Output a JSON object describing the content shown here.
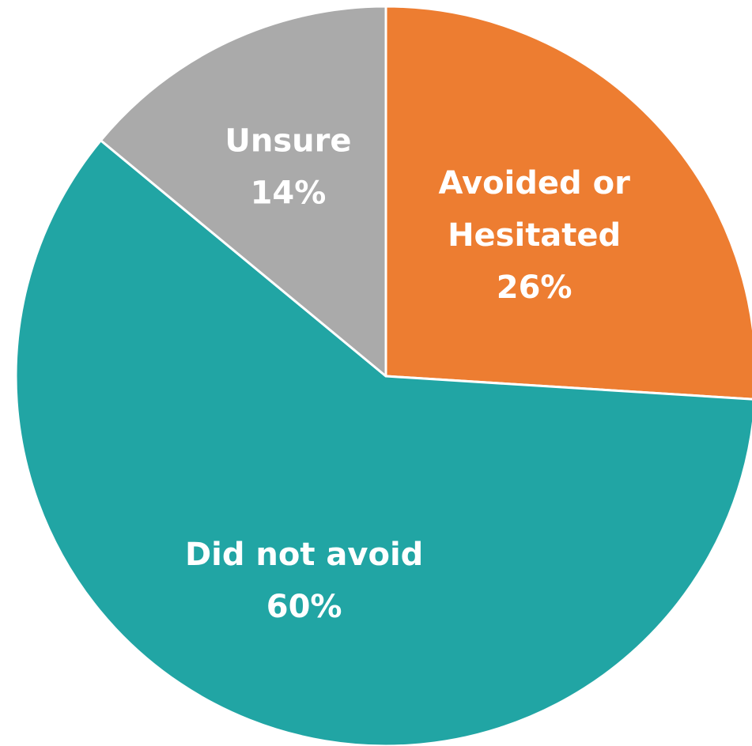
{
  "chart_data": {
    "type": "pie",
    "title": "",
    "start_angle_deg": 0,
    "direction": "clockwise",
    "slices": [
      {
        "label_lines": [
          "Avoided or",
          "Hesitated"
        ],
        "value": 26,
        "value_label": "26%",
        "color": "#ed7d31"
      },
      {
        "label_lines": [
          "Did not avoid"
        ],
        "value": 60,
        "value_label": "60%",
        "color": "#21a5a4"
      },
      {
        "label_lines": [
          "Unsure"
        ],
        "value": 14,
        "value_label": "14%",
        "color": "#aaaaaa"
      }
    ],
    "legend": "none",
    "separator_color": "#ffffff"
  }
}
